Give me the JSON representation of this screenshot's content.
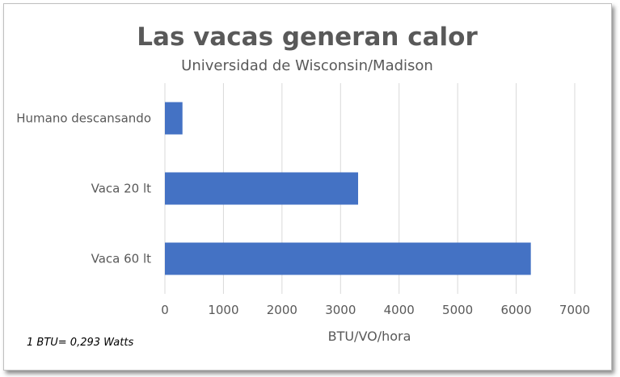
{
  "chart_data": {
    "type": "bar",
    "orientation": "horizontal",
    "title": "Las vacas generan calor",
    "subtitle": "Universidad de Wisconsin/Madison",
    "xlabel": "BTU/VO/hora",
    "ylabel": "",
    "categories": [
      "Humano descansando",
      "Vaca 20 lt",
      "Vaca 60 lt"
    ],
    "values": [
      300,
      3300,
      6250
    ],
    "xlim": [
      0,
      7000
    ],
    "xticks": [
      "0",
      "1000",
      "2000",
      "3000",
      "4000",
      "5000",
      "6000",
      "7000"
    ],
    "grid": true,
    "bar_color": "#4472c4",
    "note": "1 BTU= 0,293 Watts"
  }
}
